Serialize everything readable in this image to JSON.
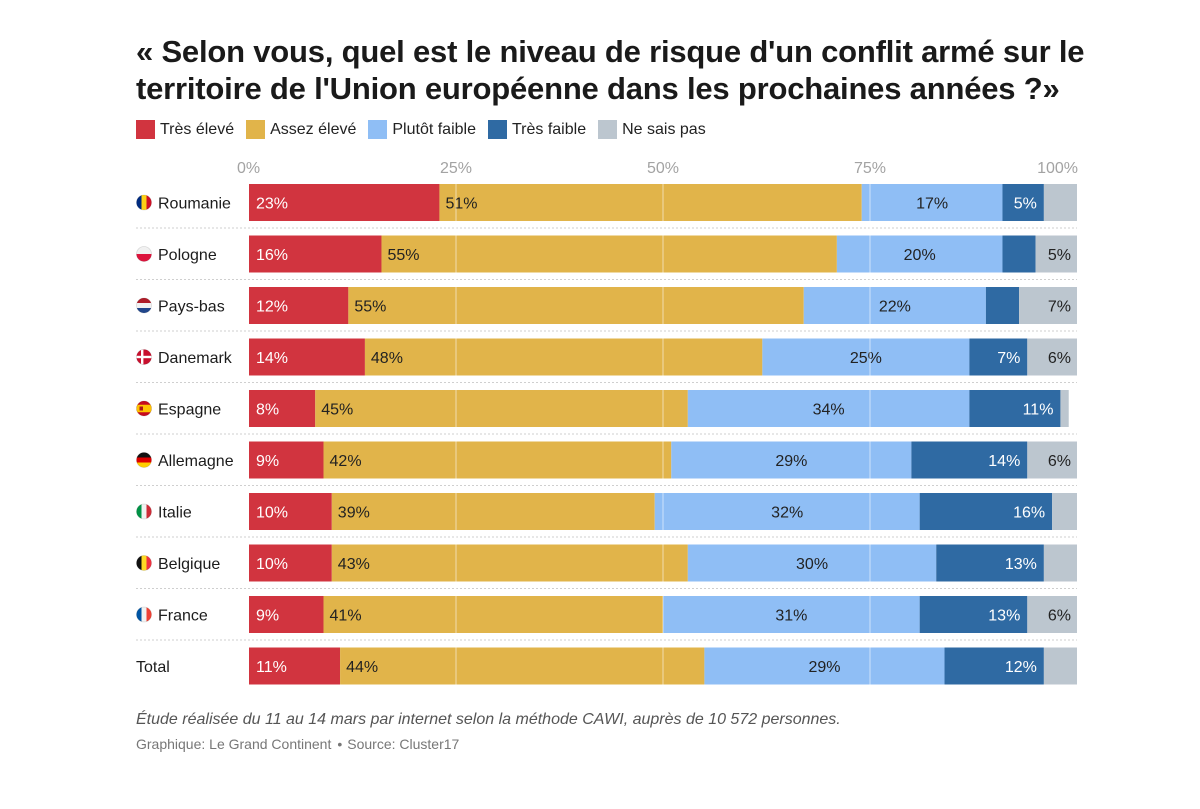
{
  "title": "« Selon vous, quel est le niveau de risque d'un conflit armé sur le territoire de l'Union européenne dans les prochaines années ?»",
  "legend": [
    {
      "label": "Très élevé",
      "color": "#d1343f"
    },
    {
      "label": "Assez élevé",
      "color": "#e1b44a"
    },
    {
      "label": "Plutôt faible",
      "color": "#8fbef5"
    },
    {
      "label": "Très faible",
      "color": "#2f6aa3"
    },
    {
      "label": "Ne sais pas",
      "color": "#bcc6cf"
    }
  ],
  "note": "Étude réalisée du 11 au 14 mars par internet selon la méthode CAWI, auprès de 10 572 personnes.",
  "credits": {
    "graphic": "Graphique: Le Grand Continent",
    "source": "Source: Cluster17"
  },
  "chart_data": {
    "type": "bar",
    "orientation": "horizontal",
    "stacked": true,
    "xlim": [
      0,
      100
    ],
    "ticks": [
      "0%",
      "25%",
      "50%",
      "75%",
      "100%"
    ],
    "categories": [
      "Roumanie",
      "Pologne",
      "Pays-bas",
      "Danemark",
      "Espagne",
      "Allemagne",
      "Italie",
      "Belgique",
      "France",
      "Total"
    ],
    "flags": [
      "ro",
      "pl",
      "nl",
      "dk",
      "es",
      "de",
      "it",
      "be",
      "fr",
      null
    ],
    "series": [
      {
        "name": "Très élevé",
        "values": [
          23,
          16,
          12,
          14,
          8,
          9,
          10,
          10,
          9,
          11
        ],
        "labels": [
          "23%",
          "16%",
          "12%",
          "14%",
          "8%",
          "9%",
          "10%",
          "10%",
          "9%",
          "11%"
        ]
      },
      {
        "name": "Assez élevé",
        "values": [
          51,
          55,
          55,
          48,
          45,
          42,
          39,
          43,
          41,
          44
        ],
        "labels": [
          "51%",
          "55%",
          "55%",
          "48%",
          "45%",
          "42%",
          "39%",
          "43%",
          "41%",
          "44%"
        ]
      },
      {
        "name": "Plutôt faible",
        "values": [
          17,
          20,
          22,
          25,
          34,
          29,
          32,
          30,
          31,
          29
        ],
        "labels": [
          "17%",
          "20%",
          "22%",
          "25%",
          "34%",
          "29%",
          "32%",
          "30%",
          "31%",
          "29%"
        ]
      },
      {
        "name": "Très faible",
        "values": [
          5,
          4,
          4,
          7,
          11,
          14,
          16,
          13,
          13,
          12
        ],
        "labels": [
          "5%",
          "",
          "",
          "7%",
          "11%",
          "14%",
          "16%",
          "13%",
          "13%",
          "12%"
        ]
      },
      {
        "name": "Ne sais pas",
        "values": [
          4,
          5,
          7,
          6,
          1,
          6,
          3,
          4,
          6,
          4
        ],
        "labels": [
          "",
          "5%",
          "7%",
          "6%",
          "",
          "6%",
          "",
          "",
          "6%",
          ""
        ]
      }
    ]
  }
}
